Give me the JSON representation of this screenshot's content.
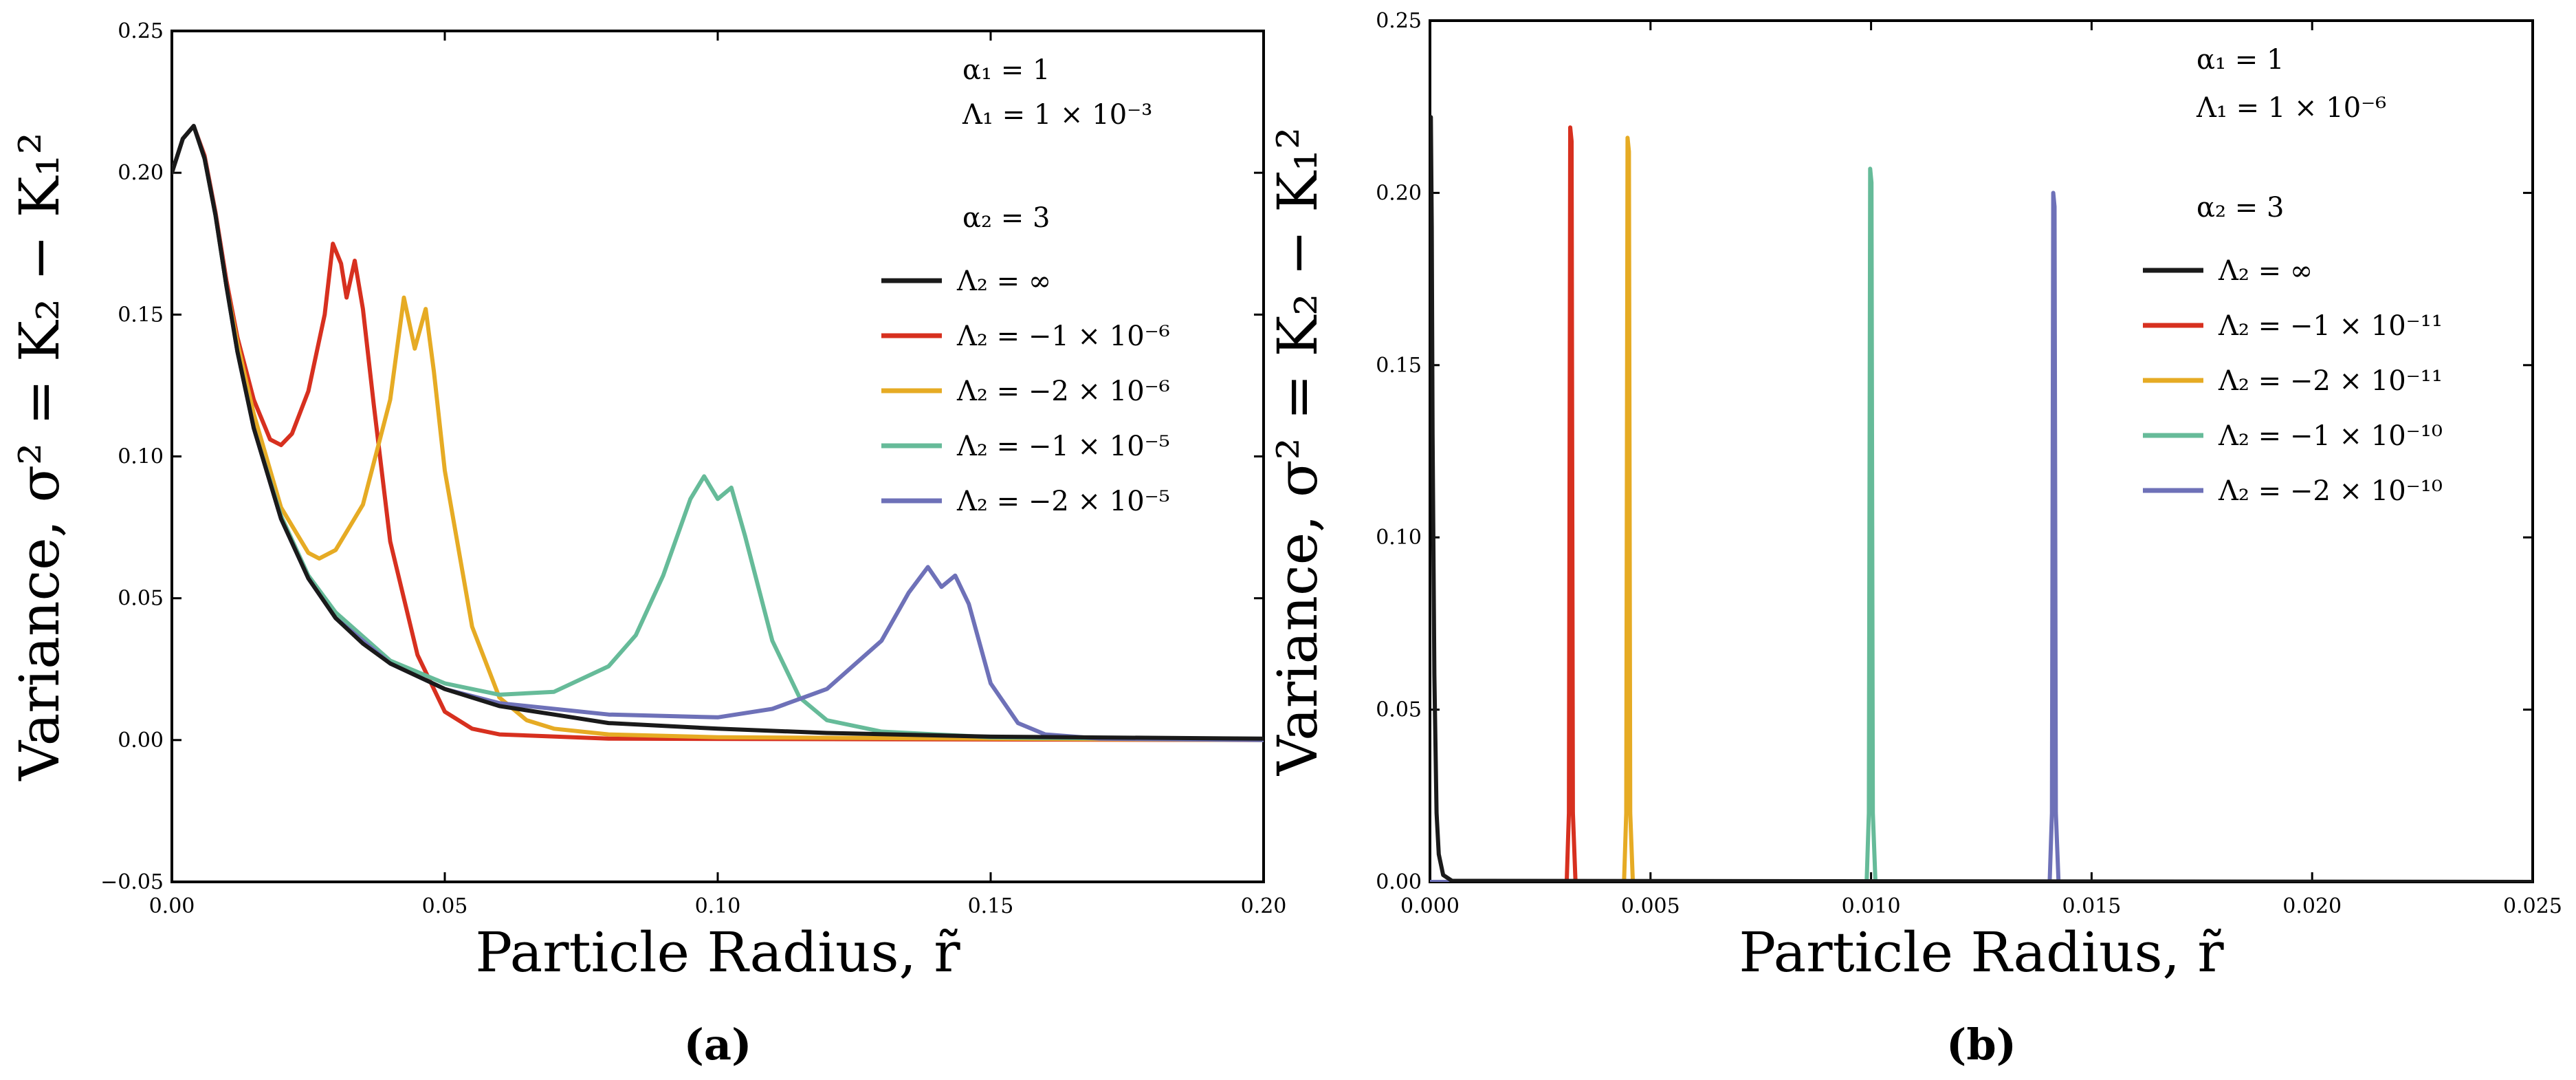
{
  "panels": [
    {
      "label": "(a)",
      "xlabel": "Particle Radius, r̃",
      "ylabel": "Variance, σ² = K₂ − K₁²",
      "params": [
        "α₁ = 1",
        "Λ₁ = 1 × 10⁻³",
        "α₂ = 3"
      ]
    },
    {
      "label": "(b)",
      "xlabel": "Particle Radius, r̃",
      "ylabel": "Variance, σ² = K₂ − K₁²",
      "params": [
        "α₁ = 1",
        "Λ₁ = 1 × 10⁻⁶",
        "α₂ = 3"
      ]
    }
  ],
  "chart_data": [
    {
      "type": "line",
      "xlim": [
        0.0,
        0.2
      ],
      "ylim": [
        -0.05,
        0.25
      ],
      "xticks": [
        "0.00",
        "0.05",
        "0.10",
        "0.15",
        "0.20"
      ],
      "yticks": [
        "−0.05",
        "0.00",
        "0.05",
        "0.10",
        "0.15",
        "0.20",
        "0.25"
      ],
      "grid": false,
      "legend_position": "right",
      "series": [
        {
          "name": "Λ₂ = ∞",
          "color": "#1a1a1a",
          "x": [
            0.0,
            0.002,
            0.004,
            0.006,
            0.008,
            0.01,
            0.012,
            0.015,
            0.02,
            0.025,
            0.03,
            0.035,
            0.04,
            0.05,
            0.06,
            0.07,
            0.08,
            0.1,
            0.12,
            0.15,
            0.2
          ],
          "y": [
            0.2,
            0.212,
            0.2165,
            0.205,
            0.185,
            0.16,
            0.137,
            0.11,
            0.078,
            0.057,
            0.043,
            0.034,
            0.027,
            0.018,
            0.012,
            0.009,
            0.006,
            0.004,
            0.0025,
            0.0012,
            0.0005
          ]
        },
        {
          "name": "Λ₂ = −1 × 10⁻⁶",
          "color": "#d7301f",
          "x": [
            0.0,
            0.002,
            0.004,
            0.006,
            0.008,
            0.01,
            0.012,
            0.015,
            0.018,
            0.02,
            0.022,
            0.025,
            0.028,
            0.0295,
            0.031,
            0.032,
            0.0335,
            0.035,
            0.037,
            0.04,
            0.045,
            0.05,
            0.055,
            0.06,
            0.08,
            0.2
          ],
          "y": [
            0.2,
            0.212,
            0.2165,
            0.206,
            0.186,
            0.162,
            0.142,
            0.12,
            0.106,
            0.104,
            0.108,
            0.123,
            0.15,
            0.175,
            0.168,
            0.156,
            0.169,
            0.152,
            0.118,
            0.07,
            0.03,
            0.01,
            0.004,
            0.002,
            0.0005,
            0.0
          ]
        },
        {
          "name": "Λ₂ = −2 × 10⁻⁶",
          "color": "#e6ab24",
          "x": [
            0.0,
            0.002,
            0.004,
            0.006,
            0.008,
            0.01,
            0.012,
            0.015,
            0.02,
            0.025,
            0.027,
            0.03,
            0.035,
            0.04,
            0.0425,
            0.0445,
            0.0465,
            0.048,
            0.05,
            0.055,
            0.06,
            0.065,
            0.07,
            0.08,
            0.1,
            0.2
          ],
          "y": [
            0.2,
            0.212,
            0.2165,
            0.205,
            0.185,
            0.16,
            0.14,
            0.115,
            0.082,
            0.066,
            0.064,
            0.067,
            0.083,
            0.12,
            0.156,
            0.138,
            0.152,
            0.13,
            0.095,
            0.04,
            0.015,
            0.007,
            0.004,
            0.002,
            0.001,
            0.0
          ]
        },
        {
          "name": "Λ₂ = −1 × 10⁻⁵",
          "color": "#66bb99",
          "x": [
            0.0,
            0.002,
            0.004,
            0.006,
            0.008,
            0.01,
            0.012,
            0.015,
            0.02,
            0.025,
            0.03,
            0.04,
            0.05,
            0.06,
            0.07,
            0.08,
            0.085,
            0.09,
            0.095,
            0.0975,
            0.1,
            0.1025,
            0.105,
            0.11,
            0.115,
            0.12,
            0.13,
            0.15,
            0.2
          ],
          "y": [
            0.2,
            0.212,
            0.2165,
            0.205,
            0.185,
            0.16,
            0.137,
            0.11,
            0.079,
            0.058,
            0.045,
            0.028,
            0.02,
            0.016,
            0.017,
            0.026,
            0.037,
            0.058,
            0.085,
            0.093,
            0.085,
            0.089,
            0.072,
            0.035,
            0.015,
            0.007,
            0.003,
            0.001,
            0.0
          ]
        },
        {
          "name": "Λ₂ = −2 × 10⁻⁵",
          "color": "#6e71b8",
          "x": [
            0.0,
            0.002,
            0.004,
            0.006,
            0.008,
            0.01,
            0.012,
            0.015,
            0.02,
            0.025,
            0.03,
            0.04,
            0.05,
            0.06,
            0.08,
            0.1,
            0.11,
            0.12,
            0.13,
            0.135,
            0.1385,
            0.141,
            0.1435,
            0.146,
            0.15,
            0.155,
            0.16,
            0.17,
            0.2
          ],
          "y": [
            0.2,
            0.212,
            0.2165,
            0.205,
            0.185,
            0.16,
            0.137,
            0.11,
            0.078,
            0.057,
            0.043,
            0.027,
            0.018,
            0.013,
            0.009,
            0.008,
            0.011,
            0.018,
            0.035,
            0.052,
            0.061,
            0.054,
            0.058,
            0.048,
            0.02,
            0.006,
            0.002,
            0.0005,
            0.0
          ]
        }
      ]
    },
    {
      "type": "line",
      "xlim": [
        0.0,
        0.025
      ],
      "ylim": [
        0.0,
        0.25
      ],
      "xticks": [
        "0.000",
        "0.005",
        "0.010",
        "0.015",
        "0.020",
        "0.025"
      ],
      "yticks": [
        "0.00",
        "0.05",
        "0.10",
        "0.15",
        "0.20",
        "0.25"
      ],
      "grid": false,
      "legend_position": "right",
      "series": [
        {
          "name": "Λ₂ = ∞",
          "color": "#1a1a1a",
          "x": [
            0.0,
            1e-05,
            2e-05,
            4e-05,
            6e-05,
            0.0001,
            0.00015,
            0.0002,
            0.0003,
            0.0005,
            0.025
          ],
          "y": [
            0.2,
            0.21,
            0.222,
            0.19,
            0.13,
            0.06,
            0.02,
            0.008,
            0.002,
            0.0003,
            0.0
          ]
        },
        {
          "name": "Λ₂ = −1 × 10⁻¹¹",
          "color": "#d7301f",
          "x": [
            0.0,
            0.0031,
            0.00315,
            0.00318,
            0.00321,
            0.00324,
            0.0033,
            0.025
          ],
          "y": [
            0.0,
            0.0,
            0.02,
            0.219,
            0.215,
            0.02,
            0.0,
            0.0
          ]
        },
        {
          "name": "Λ₂ = −2 × 10⁻¹¹",
          "color": "#e6ab24",
          "x": [
            0.0,
            0.0044,
            0.00445,
            0.00448,
            0.00451,
            0.00454,
            0.0046,
            0.025
          ],
          "y": [
            0.0,
            0.0,
            0.02,
            0.216,
            0.212,
            0.02,
            0.0,
            0.0
          ]
        },
        {
          "name": "Λ₂ = −1 × 10⁻¹⁰",
          "color": "#66bb99",
          "x": [
            0.0,
            0.0099,
            0.00995,
            0.00998,
            0.01001,
            0.01004,
            0.0101,
            0.025
          ],
          "y": [
            0.0,
            0.0,
            0.02,
            0.207,
            0.203,
            0.02,
            0.0,
            0.0
          ]
        },
        {
          "name": "Λ₂ = −2 × 10⁻¹⁰",
          "color": "#6e71b8",
          "x": [
            0.0,
            0.01405,
            0.0141,
            0.01413,
            0.01416,
            0.01419,
            0.01425,
            0.025
          ],
          "y": [
            0.0,
            0.0,
            0.02,
            0.2,
            0.196,
            0.02,
            0.0,
            0.0
          ]
        }
      ]
    }
  ]
}
